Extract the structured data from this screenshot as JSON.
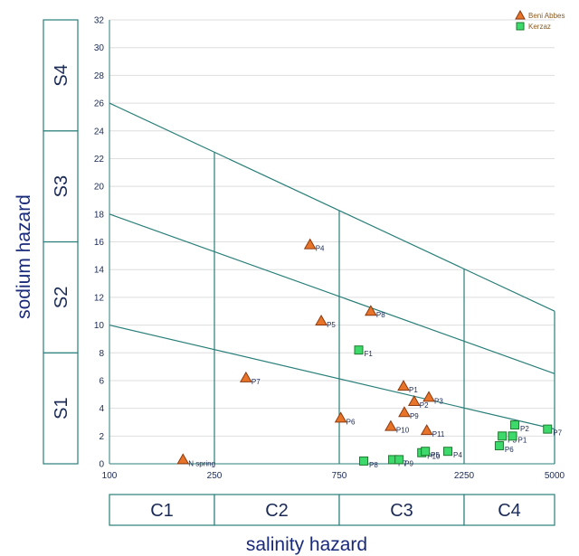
{
  "chart_data": {
    "type": "scatter",
    "title": "",
    "xlabel": "salinity hazard",
    "ylabel": "sodium hazard",
    "x_scale": "log",
    "xlim": [
      100,
      5000
    ],
    "ylim": [
      0,
      32
    ],
    "x_ticks": [
      100,
      250,
      750,
      2250,
      5000
    ],
    "y_ticks": [
      0,
      2,
      4,
      6,
      8,
      10,
      12,
      14,
      16,
      18,
      20,
      22,
      24,
      26,
      28,
      30,
      32
    ],
    "grid": true,
    "legend_position": "top-right",
    "sodium_classes": [
      "S1",
      "S2",
      "S3",
      "S4"
    ],
    "salinity_classes": [
      "C1",
      "C2",
      "C3",
      "C4"
    ],
    "series": [
      {
        "name": "Beni Abbes",
        "marker": "triangle",
        "color": "#e8742a",
        "edge": "#8b3a10",
        "points": [
          {
            "label": "N spring",
            "x": 190,
            "y": 0.3
          },
          {
            "label": "P7",
            "x": 330,
            "y": 6.2
          },
          {
            "label": "P4",
            "x": 580,
            "y": 15.8
          },
          {
            "label": "P5",
            "x": 640,
            "y": 10.3
          },
          {
            "label": "P8",
            "x": 990,
            "y": 11.0
          },
          {
            "label": "P6",
            "x": 760,
            "y": 3.3
          },
          {
            "label": "P1",
            "x": 1320,
            "y": 5.6
          },
          {
            "label": "P3",
            "x": 1650,
            "y": 4.8
          },
          {
            "label": "P2",
            "x": 1450,
            "y": 4.5
          },
          {
            "label": "P9",
            "x": 1330,
            "y": 3.7
          },
          {
            "label": "P10",
            "x": 1180,
            "y": 2.7
          },
          {
            "label": "P11",
            "x": 1620,
            "y": 2.4
          }
        ]
      },
      {
        "name": "Kerzaz",
        "marker": "square",
        "color": "#3dd96a",
        "edge": "#1f7a30",
        "points": [
          {
            "label": "F1",
            "x": 890,
            "y": 8.2
          },
          {
            "label": "P8",
            "x": 930,
            "y": 0.2
          },
          {
            "label": "P7",
            "x": 1200,
            "y": 0.3
          },
          {
            "label": "P9",
            "x": 1270,
            "y": 0.3
          },
          {
            "label": "P10",
            "x": 1550,
            "y": 0.8
          },
          {
            "label": "P5",
            "x": 1600,
            "y": 0.9
          },
          {
            "label": "P4",
            "x": 1950,
            "y": 0.9
          },
          {
            "label": "P6",
            "x": 3070,
            "y": 1.3
          },
          {
            "label": "P3",
            "x": 3150,
            "y": 2.0
          },
          {
            "label": "P1",
            "x": 3450,
            "y": 2.0
          },
          {
            "label": "P2",
            "x": 3520,
            "y": 2.8
          },
          {
            "label": "P7",
            "x": 4700,
            "y": 2.5
          }
        ]
      }
    ],
    "hazard_lines": [
      {
        "from": [
          100,
          10
        ],
        "to": [
          5000,
          2.5
        ]
      },
      {
        "from": [
          100,
          18
        ],
        "to": [
          5000,
          6.5
        ]
      },
      {
        "from": [
          100,
          26
        ],
        "to": [
          5000,
          11
        ]
      }
    ],
    "line_color": "#2a7f7a"
  }
}
